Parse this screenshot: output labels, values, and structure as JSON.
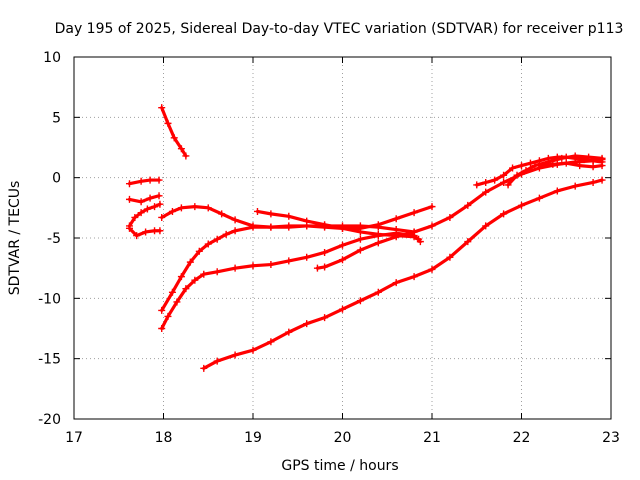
{
  "chart_data": {
    "type": "scatter",
    "title": "Day 195 of 2025, Sidereal Day-to-day VTEC variation (SDTVAR) for receiver p113",
    "xlabel": "GPS time / hours",
    "ylabel": "SDTVAR / TECUs",
    "xlim": [
      17,
      23
    ],
    "ylim": [
      -20,
      10
    ],
    "xticks": [
      "17",
      "18",
      "19",
      "20",
      "21",
      "22",
      "23"
    ],
    "yticks": [
      "10",
      "5",
      "0",
      "-5",
      "-10",
      "-15",
      "-20"
    ],
    "grid": true,
    "marker": "plus",
    "color": "#ff0000",
    "series": [
      {
        "x": [
          17.62,
          17.75,
          17.85,
          17.95
        ],
        "y": [
          -0.5,
          -0.3,
          -0.2,
          -0.2
        ]
      },
      {
        "x": [
          17.62,
          17.75,
          17.85,
          17.95
        ],
        "y": [
          -1.8,
          -2.0,
          -1.7,
          -1.5
        ]
      },
      {
        "x": [
          17.62,
          17.68,
          17.75,
          17.82,
          17.9,
          17.96
        ],
        "y": [
          -4.0,
          -3.3,
          -2.9,
          -2.6,
          -2.4,
          -2.2
        ]
      },
      {
        "x": [
          17.62,
          17.7,
          17.8,
          17.9,
          17.96
        ],
        "y": [
          -4.2,
          -4.8,
          -4.5,
          -4.4,
          -4.4
        ]
      },
      {
        "x": [
          17.98,
          18.05,
          18.12,
          18.2,
          18.25
        ],
        "y": [
          5.8,
          4.5,
          3.3,
          2.4,
          1.8
        ]
      },
      {
        "x": [
          17.98,
          18.1,
          18.2,
          18.35,
          18.5,
          18.65,
          18.8,
          19.0,
          19.2,
          19.4,
          19.6,
          19.8,
          20.0,
          20.2,
          20.4,
          20.6,
          20.8
        ],
        "y": [
          -3.3,
          -2.8,
          -2.5,
          -2.4,
          -2.5,
          -3.0,
          -3.5,
          -4.0,
          -4.1,
          -4.1,
          -4.0,
          -4.0,
          -4.0,
          -4.0,
          -4.1,
          -4.3,
          -4.5
        ]
      },
      {
        "x": [
          17.98,
          18.1,
          18.2,
          18.3,
          18.4,
          18.5,
          18.6,
          18.7,
          18.8,
          19.0,
          19.2,
          19.4,
          19.6,
          19.8,
          20.0,
          20.2,
          20.4,
          20.6,
          20.8,
          21.0
        ],
        "y": [
          -11.0,
          -9.5,
          -8.2,
          -7.0,
          -6.1,
          -5.5,
          -5.1,
          -4.7,
          -4.4,
          -4.1,
          -4.1,
          -4.0,
          -4.0,
          -4.1,
          -4.2,
          -4.2,
          -3.9,
          -3.4,
          -2.9,
          -2.4
        ]
      },
      {
        "x": [
          17.98,
          18.05,
          18.15,
          18.25,
          18.35,
          18.45,
          18.6,
          18.8,
          19.0,
          19.2,
          19.4,
          19.6,
          19.8,
          20.0,
          20.2,
          20.4,
          20.6,
          20.8,
          20.87
        ],
        "y": [
          -12.5,
          -11.5,
          -10.3,
          -9.2,
          -8.5,
          -8.0,
          -7.8,
          -7.5,
          -7.3,
          -7.2,
          -6.9,
          -6.6,
          -6.2,
          -5.6,
          -5.1,
          -4.8,
          -4.6,
          -4.8,
          -5.3
        ]
      },
      {
        "x": [
          19.05,
          19.2,
          19.4,
          19.6,
          19.8,
          20.0,
          20.2,
          20.4,
          20.6,
          20.8,
          20.85
        ],
        "y": [
          -2.8,
          -3.0,
          -3.2,
          -3.6,
          -3.9,
          -4.2,
          -4.5,
          -4.7,
          -4.8,
          -4.9,
          -5.1
        ]
      },
      {
        "x": [
          19.72,
          19.8,
          20.0,
          20.2,
          20.4,
          20.6,
          20.8,
          21.0,
          21.2,
          21.4,
          21.6,
          21.8,
          22.0,
          22.2,
          22.4,
          22.6,
          22.8,
          22.9
        ],
        "y": [
          -7.5,
          -7.4,
          -6.8,
          -6.0,
          -5.4,
          -4.9,
          -4.5,
          -4.0,
          -3.3,
          -2.3,
          -1.2,
          -0.4,
          0.3,
          0.8,
          1.1,
          1.3,
          1.4,
          1.5
        ]
      },
      {
        "x": [
          18.45,
          18.6,
          18.8,
          19.0,
          19.2,
          19.4,
          19.6,
          19.8,
          20.0,
          20.2,
          20.4,
          20.6,
          20.8,
          21.0,
          21.2,
          21.4,
          21.6,
          21.8,
          22.0,
          22.2,
          22.4,
          22.6,
          22.8,
          22.9
        ],
        "y": [
          -15.8,
          -15.2,
          -14.7,
          -14.3,
          -13.6,
          -12.8,
          -12.1,
          -11.6,
          -10.9,
          -10.2,
          -9.5,
          -8.7,
          -8.2,
          -7.6,
          -6.6,
          -5.3,
          -4.0,
          -3.0,
          -2.3,
          -1.7,
          -1.1,
          -0.7,
          -0.4,
          -0.2
        ]
      },
      {
        "x": [
          21.5,
          21.6,
          21.7,
          21.8,
          21.9,
          22.0,
          22.1,
          22.2,
          22.3,
          22.4,
          22.5,
          22.6,
          22.7,
          22.8,
          22.9
        ],
        "y": [
          -0.6,
          -0.4,
          -0.2,
          0.2,
          0.8,
          1.0,
          1.2,
          1.4,
          1.6,
          1.7,
          1.7,
          1.6,
          1.5,
          1.4,
          1.3
        ]
      },
      {
        "x": [
          21.85,
          21.95,
          22.05,
          22.15,
          22.3,
          22.45,
          22.6,
          22.75,
          22.9
        ],
        "y": [
          -0.6,
          0.2,
          0.6,
          1.0,
          1.3,
          1.6,
          1.8,
          1.7,
          1.6
        ]
      },
      {
        "x": [
          22.2,
          22.35,
          22.5,
          22.65,
          22.8,
          22.9
        ],
        "y": [
          1.0,
          1.1,
          1.2,
          1.0,
          0.9,
          1.0
        ]
      }
    ]
  }
}
